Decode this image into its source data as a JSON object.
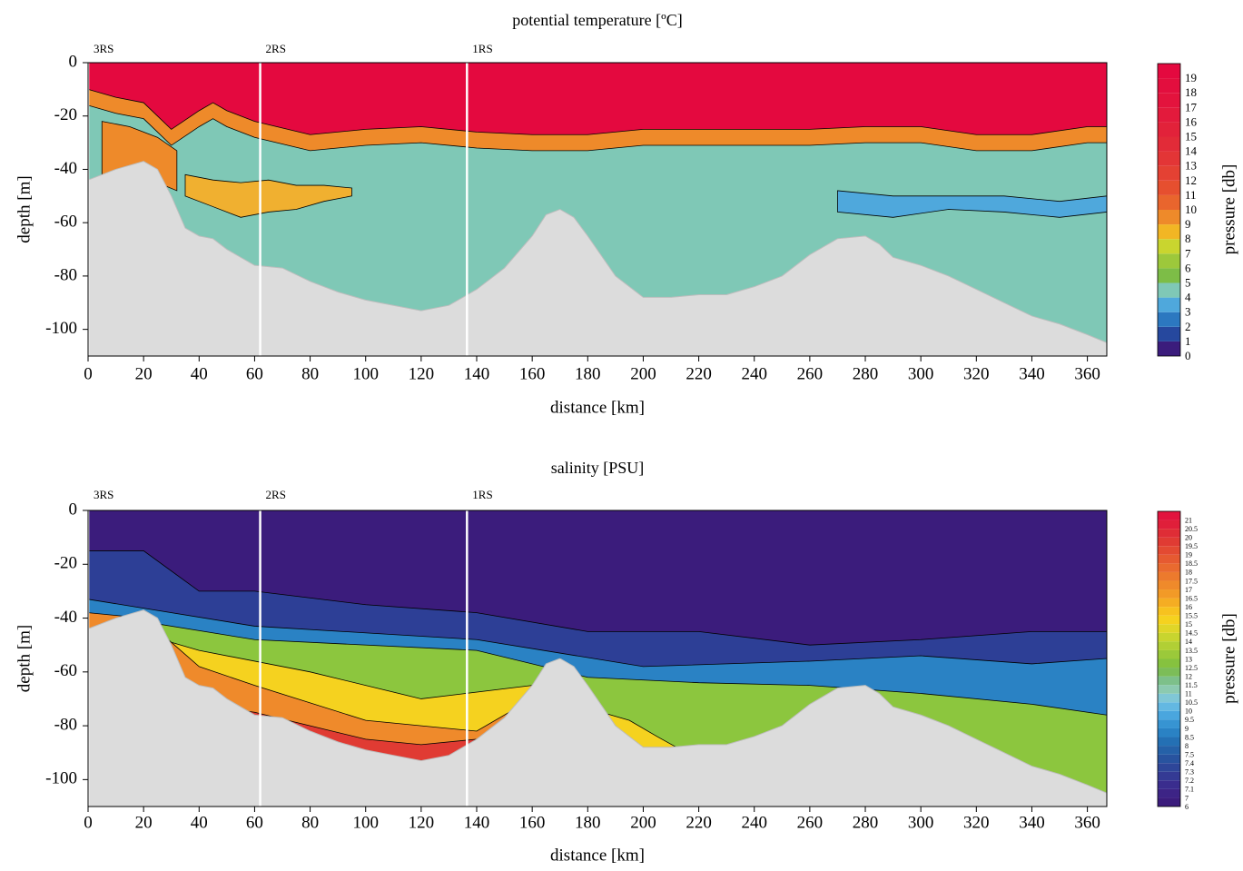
{
  "chart_data": [
    {
      "type": "contour",
      "title": "potential temperature [ºC]",
      "x_label": "distance [km]",
      "y_label": "depth [m]",
      "xlim": [
        0,
        367
      ],
      "xticks": [
        0,
        20,
        40,
        60,
        80,
        100,
        120,
        140,
        160,
        180,
        200,
        220,
        240,
        260,
        280,
        300,
        320,
        340,
        360
      ],
      "ylim": [
        -110,
        0
      ],
      "yticks": [
        0,
        -20,
        -40,
        -60,
        -80,
        -100
      ],
      "stations": [
        {
          "label": "3RS",
          "x": 0
        },
        {
          "label": "2RS",
          "x": 62
        },
        {
          "label": "1RS",
          "x": 136.5
        }
      ],
      "seafloor": {
        "x": [
          0,
          10,
          20,
          25,
          30,
          35,
          40,
          45,
          50,
          60,
          70,
          80,
          90,
          100,
          110,
          120,
          130,
          140,
          150,
          160,
          165,
          170,
          175,
          180,
          190,
          200,
          210,
          220,
          230,
          240,
          250,
          260,
          270,
          280,
          285,
          290,
          300,
          310,
          320,
          330,
          340,
          350,
          360,
          367
        ],
        "depth": [
          -44,
          -40,
          -37,
          -40,
          -50,
          -62,
          -65,
          -66,
          -70,
          -76,
          -77,
          -82,
          -86,
          -89,
          -91,
          -93,
          -91,
          -85,
          -77,
          -65,
          -57,
          -55,
          -58,
          -65,
          -80,
          -88,
          -88,
          -87,
          -87,
          -84,
          -80,
          -72,
          -66,
          -65,
          -68,
          -73,
          -76,
          -80,
          -85,
          -90,
          -95,
          -98,
          -102,
          -105
        ]
      },
      "base_color": "#e4093f",
      "layers": [
        {
          "color": "#ee8a2a",
          "x": [
            0,
            10,
            20,
            30,
            40,
            45,
            50,
            60,
            80,
            100,
            120,
            140,
            160,
            180,
            200,
            220,
            240,
            260,
            280,
            300,
            320,
            340,
            360,
            367
          ],
          "top": [
            -10,
            -13,
            -15,
            -25,
            -18,
            -15,
            -18,
            -22,
            -27,
            -25,
            -24,
            -26,
            -27,
            -27,
            -25,
            -25,
            -25,
            -25,
            -24,
            -24,
            -27,
            -27,
            -24,
            -24
          ]
        },
        {
          "color": "#7fc8b6",
          "x": [
            0,
            10,
            20,
            30,
            40,
            45,
            50,
            60,
            80,
            100,
            120,
            140,
            160,
            180,
            200,
            220,
            240,
            260,
            280,
            300,
            320,
            340,
            360,
            367
          ],
          "top": [
            -16,
            -19,
            -21,
            -31,
            -24,
            -21,
            -24,
            -28,
            -33,
            -31,
            -30,
            -32,
            -33,
            -33,
            -31,
            -31,
            -31,
            -31,
            -30,
            -30,
            -33,
            -33,
            -30,
            -30
          ]
        },
        {
          "color": "#ee8a2a",
          "x": [
            5,
            15,
            25,
            32
          ],
          "top": [
            -22,
            -24,
            -28,
            -33
          ],
          "bottom": [
            -42,
            -40,
            -45,
            -48
          ]
        },
        {
          "color": "#f0b030",
          "x": [
            35,
            45,
            55,
            65,
            75,
            85,
            95
          ],
          "top": [
            -42,
            -44,
            -45,
            -44,
            -46,
            -46,
            -47
          ],
          "bottom": [
            -50,
            -54,
            -58,
            -56,
            -55,
            -52,
            -50
          ]
        },
        {
          "color": "#4fa8dc",
          "x": [
            270,
            290,
            310,
            330,
            350,
            367
          ],
          "top": [
            -48,
            -50,
            -50,
            -50,
            -52,
            -50
          ],
          "bottom": [
            -56,
            -58,
            -55,
            -56,
            -58,
            -56
          ]
        }
      ],
      "colorbar": {
        "label": "pressure [db]",
        "levels": [
          0,
          1,
          2,
          3,
          4,
          5,
          6,
          7,
          8,
          9,
          10,
          11,
          12,
          13,
          14,
          15,
          16,
          17,
          18,
          19
        ],
        "colors": [
          "#3b1c7c",
          "#26489e",
          "#2c78c0",
          "#4fa8dc",
          "#7fc8b6",
          "#7dbd47",
          "#9dc83b",
          "#c9d52f",
          "#f2b624",
          "#ee8a2a",
          "#e9652d",
          "#e64f2f",
          "#e44133",
          "#e33536",
          "#e22b38",
          "#e2223a",
          "#e31a3c",
          "#e3133d",
          "#e30e3e",
          "#e4093f"
        ]
      }
    },
    {
      "type": "contour",
      "title": "salinity [PSU]",
      "x_label": "distance [km]",
      "y_label": "depth [m]",
      "xlim": [
        0,
        367
      ],
      "xticks": [
        0,
        20,
        40,
        60,
        80,
        100,
        120,
        140,
        160,
        180,
        200,
        220,
        240,
        260,
        280,
        300,
        320,
        340,
        360
      ],
      "ylim": [
        -110,
        0
      ],
      "yticks": [
        0,
        -20,
        -40,
        -60,
        -80,
        -100
      ],
      "stations": [
        {
          "label": "3RS",
          "x": 0
        },
        {
          "label": "2RS",
          "x": 62
        },
        {
          "label": "1RS",
          "x": 136.5
        }
      ],
      "seafloor": {
        "x": [
          0,
          10,
          20,
          25,
          30,
          35,
          40,
          45,
          50,
          60,
          70,
          80,
          90,
          100,
          110,
          120,
          130,
          140,
          150,
          160,
          165,
          170,
          175,
          180,
          190,
          200,
          210,
          220,
          230,
          240,
          250,
          260,
          270,
          280,
          285,
          290,
          300,
          310,
          320,
          330,
          340,
          350,
          360,
          367
        ],
        "depth": [
          -44,
          -40,
          -37,
          -40,
          -50,
          -62,
          -65,
          -66,
          -70,
          -76,
          -77,
          -82,
          -86,
          -89,
          -91,
          -93,
          -91,
          -85,
          -77,
          -65,
          -57,
          -55,
          -58,
          -65,
          -80,
          -88,
          -88,
          -87,
          -87,
          -84,
          -80,
          -72,
          -66,
          -65,
          -68,
          -73,
          -76,
          -80,
          -85,
          -90,
          -95,
          -98,
          -102,
          -105
        ]
      },
      "base_color": "#3b1c7c",
      "layers": [
        {
          "color": "#2d3f96",
          "x": [
            0,
            20,
            40,
            60,
            100,
            140,
            180,
            220,
            260,
            300,
            340,
            367
          ],
          "top": [
            -15,
            -15,
            -30,
            -30,
            -35,
            -38,
            -45,
            -45,
            -50,
            -48,
            -45,
            -45
          ]
        },
        {
          "color": "#2a82c4",
          "x": [
            0,
            60,
            140,
            170,
            200,
            260,
            300,
            340,
            367
          ],
          "top": [
            -33,
            -43,
            -48,
            -53,
            -58,
            -56,
            -54,
            -57,
            -55
          ]
        },
        {
          "color": "#8cc63e",
          "x": [
            0,
            60,
            140,
            180,
            220,
            260,
            300,
            340,
            367
          ],
          "top": [
            -38,
            -48,
            -52,
            -62,
            -64,
            -65,
            -68,
            -72,
            -76
          ]
        },
        {
          "color": "#f5d21f",
          "x": [
            0,
            40,
            80,
            120,
            160,
            170
          ],
          "top": [
            -40,
            -52,
            -60,
            -70,
            -65,
            -55
          ]
        },
        {
          "color": "#f5d21f",
          "x": [
            185,
            195,
            205,
            212
          ],
          "top": [
            -75,
            -78,
            -84,
            -88
          ]
        },
        {
          "color": "#ef8a2b",
          "x": [
            0,
            20,
            40,
            60,
            100,
            140,
            160
          ],
          "top": [
            -38,
            -40,
            -58,
            -65,
            -78,
            -82,
            -70
          ]
        },
        {
          "color": "#e03b33",
          "x": [
            40,
            60,
            80,
            100,
            120,
            140,
            150
          ],
          "top": [
            -72,
            -75,
            -80,
            -85,
            -87,
            -85,
            -80
          ]
        }
      ],
      "colorbar": {
        "label": "pressure [db]",
        "levels": [
          6,
          7,
          7.1,
          7.2,
          7.3,
          7.4,
          7.5,
          8,
          8.5,
          9,
          9.5,
          10,
          10.5,
          11,
          11.5,
          12,
          12.5,
          13,
          13.5,
          14,
          14.5,
          15,
          15.5,
          16,
          16.5,
          17,
          17.5,
          18,
          18.5,
          19,
          19.5,
          20,
          20.5,
          21
        ],
        "colors": [
          "#3b1c7c",
          "#3d2486",
          "#3a2d8e",
          "#343a94",
          "#2e4699",
          "#28539f",
          "#2561a8",
          "#2470b4",
          "#2a82c4",
          "#3794d2",
          "#4aa6de",
          "#63b8e2",
          "#80c7d6",
          "#8ccab0",
          "#7dc08a",
          "#7cbd58",
          "#86c23f",
          "#9bc93a",
          "#b1cf35",
          "#c8d52f",
          "#e0d628",
          "#f5d21f",
          "#f7c21f",
          "#f5ad23",
          "#f29a27",
          "#ef8a2b",
          "#ec7a2d",
          "#e96a2f",
          "#e65a31",
          "#e34a32",
          "#e03b33",
          "#df2d36",
          "#e01f3a",
          "#e2133e"
        ]
      }
    }
  ]
}
